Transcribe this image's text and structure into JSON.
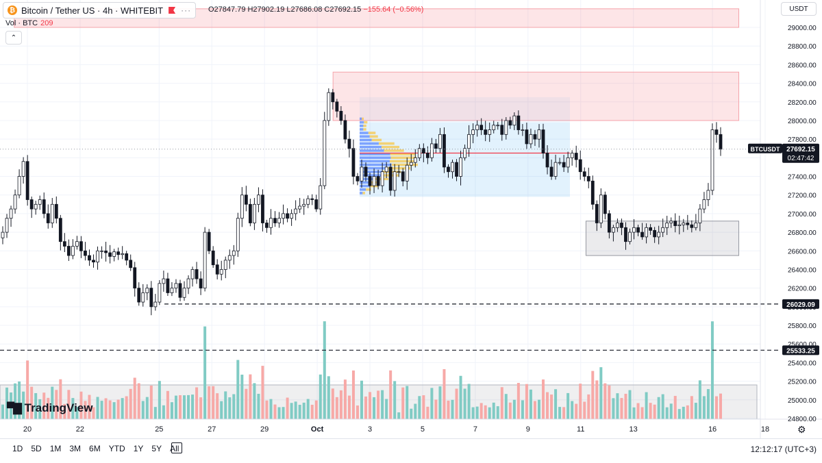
{
  "header": {
    "symbol_title": "Bitcoin / Tether US · 4h · WHITEBIT",
    "logo_glyph": "₿",
    "more_dots": "···",
    "ohlc_text": "O27847.79 H27902.19 L27686.08 C27692.15",
    "change_text": "−155.64 (−0.56%)",
    "vol_label": "Vol · BTC",
    "vol_value": "209",
    "collapse_glyph": "⌃",
    "currency": "USDT"
  },
  "watermark": "TradingView",
  "timeframes": [
    "1D",
    "5D",
    "1M",
    "3M",
    "6M",
    "YTD",
    "1Y",
    "5Y",
    "All"
  ],
  "clock": "12:12:17 (UTC+3)",
  "price_tag": {
    "label": "BTCUSDT",
    "price": "27692.15",
    "countdown": "02:47:42"
  },
  "level_tags": [
    "26029.09",
    "25533.25"
  ],
  "colors": {
    "up": "#26a69a",
    "down": "#f23645",
    "volUp": "#80cbc4",
    "volDown": "#f7a9a7"
  },
  "chart_data": {
    "type": "candlestick",
    "title": "Bitcoin / Tether US · 4h · WHITEBIT",
    "ylim": [
      24750,
      29100
    ],
    "y_ticks": [
      24800,
      25000,
      25200,
      25400,
      25600,
      25800,
      26000,
      26200,
      26400,
      26600,
      26800,
      27000,
      27200,
      27400,
      27600,
      27800,
      28000,
      28200,
      28400,
      28600,
      28800,
      29000
    ],
    "x_ticks": [
      {
        "label": "20",
        "day": 20
      },
      {
        "label": "22",
        "day": 22
      },
      {
        "label": "25",
        "day": 25
      },
      {
        "label": "27",
        "day": 27
      },
      {
        "label": "29",
        "day": 29
      },
      {
        "label": "Oct",
        "day": 31
      },
      {
        "label": "3",
        "day": 33
      },
      {
        "label": "5",
        "day": 35
      },
      {
        "label": "7",
        "day": 37
      },
      {
        "label": "9",
        "day": 39
      },
      {
        "label": "11",
        "day": 41
      },
      {
        "label": "13",
        "day": 43
      },
      {
        "label": "16",
        "day": 46
      },
      {
        "label": "18",
        "day": 48
      }
    ],
    "last_price": 27692.15,
    "levels": [
      26029.09,
      25533.25
    ],
    "zones": [
      {
        "name": "resistance-top",
        "from": 29000,
        "to": 29200,
        "start_day": 19.5,
        "end_day": 47
      },
      {
        "name": "resistance",
        "from": 28000,
        "to": 28520,
        "start_day": 31.6,
        "end_day": 47
      },
      {
        "name": "support",
        "from": 26550,
        "to": 26920,
        "start_day": 41.2,
        "end_day": 47
      }
    ],
    "candles_close": [
      26800,
      26950,
      27050,
      27200,
      27400,
      27560,
      27150,
      27050,
      27100,
      27150,
      27000,
      26900,
      27100,
      26950,
      26700,
      26650,
      26550,
      26650,
      26700,
      26600,
      26550,
      26500,
      26480,
      26600,
      26600,
      26580,
      26540,
      26590,
      26560,
      26570,
      26500,
      26420,
      26200,
      26050,
      26150,
      26200,
      26000,
      26050,
      26250,
      26300,
      26150,
      26200,
      26250,
      26100,
      26200,
      26300,
      26400,
      26300,
      26200,
      26800,
      26600,
      26450,
      26350,
      26400,
      26500,
      26550,
      26600,
      26950,
      27200,
      27100,
      26900,
      27100,
      27200,
      26900,
      26850,
      26950,
      26900,
      26950,
      27000,
      26950,
      27000,
      27050,
      27080,
      27100,
      27160,
      27150,
      27050,
      27300,
      28000,
      28300,
      28200,
      28100,
      28000,
      27800,
      27700,
      27400,
      27350,
      27500,
      27400,
      27300,
      27400,
      27300,
      27450,
      27500,
      27250,
      27450,
      27450,
      27350,
      27520,
      27550,
      27600,
      27700,
      27650,
      27600,
      27750,
      27700,
      27850,
      27500,
      27450,
      27550,
      27400,
      27600,
      27700,
      27850,
      27900,
      27950,
      27900,
      27850,
      27900,
      27950,
      27950,
      27850,
      28000,
      27950,
      28050,
      27900,
      27900,
      27750,
      27850,
      27800,
      27900,
      27650,
      27500,
      27400,
      27550,
      27550,
      27500,
      27600,
      27650,
      27580,
      27450,
      27400,
      27350,
      27100,
      26900,
      27200,
      27000,
      26800,
      26850,
      26900,
      26850,
      26700,
      26800,
      26850,
      26800,
      26750,
      26850,
      26820,
      26750,
      26800,
      26850,
      26900,
      26920,
      26870,
      26880,
      26900,
      26880,
      26850,
      26900,
      27050,
      27150,
      27250,
      27900,
      27850,
      27692
    ]
  }
}
